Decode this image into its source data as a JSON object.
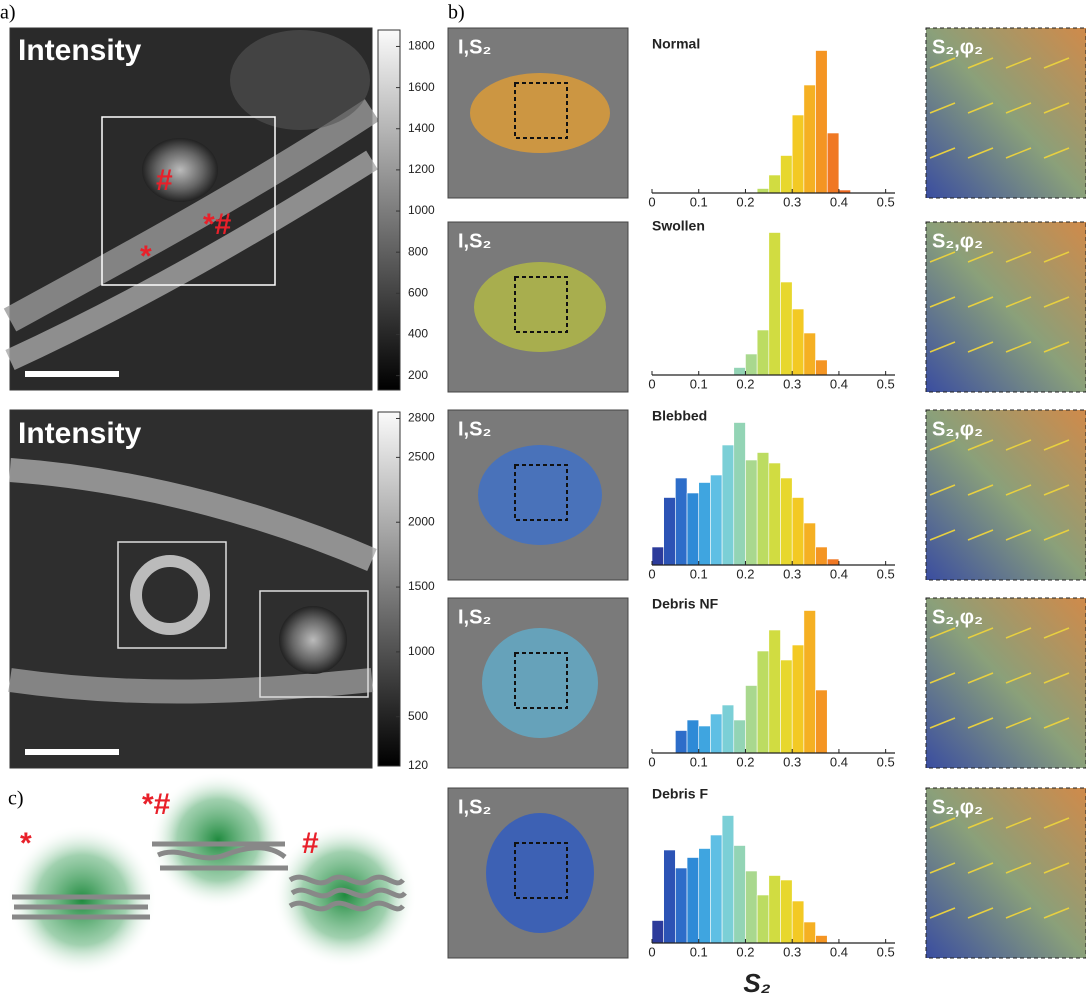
{
  "panel_labels": [
    "a)",
    "b)",
    "c)"
  ],
  "panel_a": {
    "images": [
      {
        "label": "Intensity",
        "annotations": [
          "#",
          "*#",
          "*"
        ],
        "colorbar": {
          "lim": [
            130,
            1880
          ],
          "ticks": [
            1800,
            1600,
            1400,
            1200,
            1000,
            800,
            600,
            400,
            200
          ]
        }
      },
      {
        "label": "Intensity",
        "annotations": [],
        "colorbar": {
          "lim": [
            120,
            2850
          ],
          "ticks": [
            2800,
            2500,
            2000,
            1500,
            1000,
            500,
            120
          ]
        }
      }
    ]
  },
  "panel_b": {
    "image_labels": [
      "I,S₂",
      "I,S₂",
      "I,S₂",
      "I,S₂",
      "I,S₂"
    ],
    "orientation_labels": [
      "S₂,φ₂",
      "S₂,φ₂",
      "S₂,φ₂",
      "S₂,φ₂",
      "S₂,φ₂"
    ],
    "x_label": "S₂"
  },
  "panel_c": {
    "annotations": [
      "*",
      "*#",
      "#"
    ]
  },
  "colormap": [
    "#2c2f8e",
    "#2c5fc2",
    "#2f98de",
    "#6fcce6",
    "#9fd6a4",
    "#c6de4a",
    "#f2d524",
    "#f6a323",
    "#ee6a23"
  ],
  "chart_data": [
    {
      "type": "histogram",
      "title": "Normal",
      "bins": [
        0.225,
        0.25,
        0.275,
        0.3,
        0.325,
        0.35,
        0.375,
        0.4,
        0.425
      ],
      "values": [
        3,
        12,
        25,
        52,
        72,
        95,
        40,
        2
      ],
      "xlim": [
        0,
        0.52
      ],
      "ylim": [
        0,
        100
      ],
      "xticks": [
        0,
        0.1,
        0.2,
        0.3,
        0.4,
        0.5
      ]
    },
    {
      "type": "histogram",
      "title": "Swollen",
      "bins": [
        0.175,
        0.2,
        0.225,
        0.25,
        0.275,
        0.3,
        0.325,
        0.35,
        0.375
      ],
      "values": [
        5,
        14,
        30,
        95,
        62,
        44,
        28,
        10
      ],
      "xlim": [
        0,
        0.52
      ],
      "ylim": [
        0,
        100
      ],
      "xticks": [
        0,
        0.1,
        0.2,
        0.3,
        0.4,
        0.5
      ]
    },
    {
      "type": "histogram",
      "title": "Blebbed",
      "bins": [
        0,
        0.025,
        0.05,
        0.075,
        0.1,
        0.125,
        0.15,
        0.175,
        0.2,
        0.225,
        0.25,
        0.275,
        0.3,
        0.325,
        0.35,
        0.375,
        0.4
      ],
      "values": [
        12,
        45,
        58,
        48,
        55,
        60,
        80,
        95,
        70,
        75,
        68,
        58,
        45,
        28,
        12,
        4
      ],
      "xlim": [
        0,
        0.52
      ],
      "ylim": [
        0,
        100
      ],
      "xticks": [
        0,
        0.1,
        0.2,
        0.3,
        0.4,
        0.5
      ]
    },
    {
      "type": "histogram",
      "title": "Debris NF",
      "bins": [
        0.05,
        0.075,
        0.1,
        0.125,
        0.15,
        0.175,
        0.2,
        0.225,
        0.25,
        0.275,
        0.3,
        0.325,
        0.35,
        0.375
      ],
      "values": [
        15,
        22,
        18,
        26,
        32,
        22,
        45,
        68,
        82,
        62,
        72,
        95,
        42
      ],
      "xlim": [
        0,
        0.52
      ],
      "ylim": [
        0,
        100
      ],
      "xticks": [
        0,
        0.1,
        0.2,
        0.3,
        0.4,
        0.5
      ]
    },
    {
      "type": "histogram",
      "title": "Debris F",
      "bins": [
        0,
        0.025,
        0.05,
        0.075,
        0.1,
        0.125,
        0.15,
        0.175,
        0.2,
        0.225,
        0.25,
        0.275,
        0.3,
        0.325,
        0.35,
        0.375
      ],
      "values": [
        15,
        62,
        50,
        57,
        63,
        72,
        85,
        65,
        48,
        32,
        45,
        42,
        28,
        14,
        5
      ],
      "xlim": [
        0,
        0.52
      ],
      "ylim": [
        0,
        100
      ],
      "xticks": [
        0,
        0.1,
        0.2,
        0.3,
        0.4,
        0.5
      ]
    }
  ]
}
